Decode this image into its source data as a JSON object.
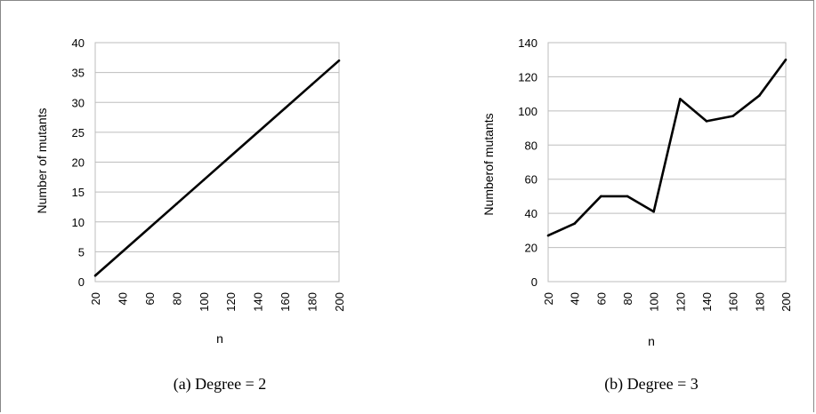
{
  "chart_data": [
    {
      "type": "line",
      "caption": "(a)  Degree = 2",
      "xlabel": "n",
      "ylabel": "Number of mutants",
      "categories": [
        "20",
        "40",
        "60",
        "80",
        "100",
        "120",
        "140",
        "160",
        "180",
        "200"
      ],
      "y_ticks": [
        "0",
        "5",
        "10",
        "15",
        "20",
        "25",
        "30",
        "35",
        "40"
      ],
      "ylim": [
        0,
        40
      ],
      "grid": true,
      "series": [
        {
          "values": [
            1,
            5,
            9,
            13,
            17,
            21,
            25,
            29,
            33,
            37
          ]
        }
      ]
    },
    {
      "type": "line",
      "caption": "(b)  Degree = 3",
      "xlabel": "n",
      "ylabel": "Numberof mutants",
      "categories": [
        "20",
        "40",
        "60",
        "80",
        "100",
        "120",
        "140",
        "160",
        "180",
        "200"
      ],
      "y_ticks": [
        "0",
        "20",
        "40",
        "60",
        "80",
        "100",
        "120",
        "140"
      ],
      "ylim": [
        0,
        140
      ],
      "grid": true,
      "series": [
        {
          "values": [
            27,
            34,
            50,
            50,
            41,
            107,
            94,
            97,
            109,
            130
          ]
        }
      ]
    }
  ]
}
